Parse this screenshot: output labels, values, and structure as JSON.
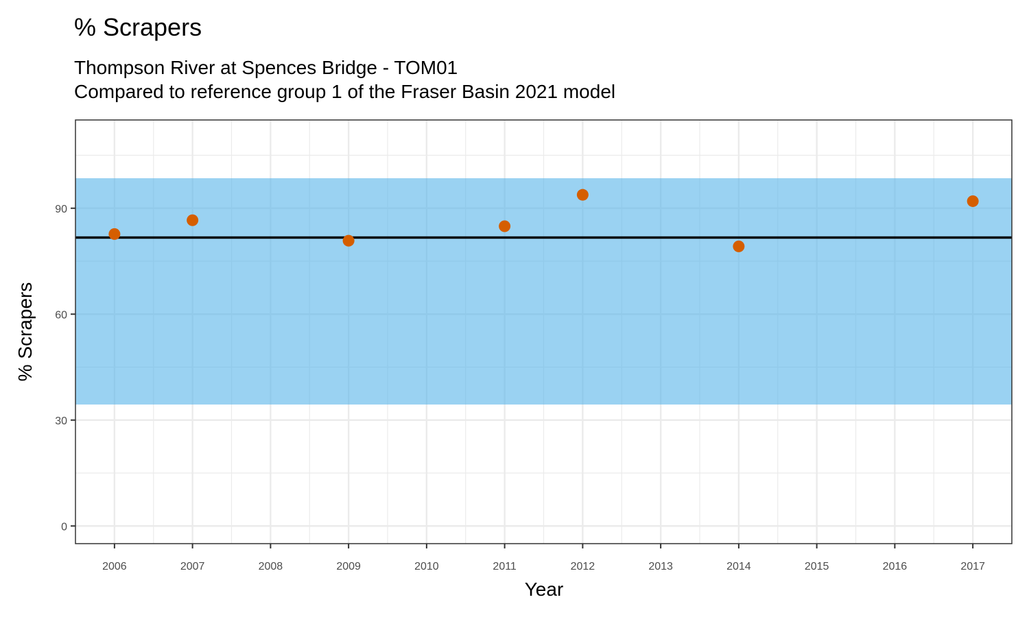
{
  "chart_data": {
    "type": "scatter",
    "title": "% Scrapers",
    "subtitle_lines": [
      "Thompson River at Spences Bridge - TOM01",
      "Compared to reference group 1 of the Fraser Basin 2021 model"
    ],
    "xlabel": "Year",
    "ylabel": "% Scrapers",
    "x_ticks": [
      "2006",
      "2007",
      "2008",
      "2009",
      "2010",
      "2011",
      "2012",
      "2013",
      "2014",
      "2015",
      "2016",
      "2017"
    ],
    "y_ticks": [
      "0",
      "30",
      "60",
      "90"
    ],
    "xlim": [
      2005.5,
      2017.5
    ],
    "ylim": [
      -5,
      115
    ],
    "grid": true,
    "series": [
      {
        "x": [
          2006,
          2007,
          2009,
          2011,
          2012,
          2014,
          2017
        ],
        "y": [
          82.7,
          86.6,
          80.8,
          84.9,
          93.8,
          79.2,
          92.0
        ]
      }
    ],
    "reference_line": 81.7,
    "reference_band": [
      34.4,
      98.5
    ],
    "colors": {
      "point": "#D55E00",
      "band": "#56B4E9",
      "line": "#000000",
      "grid": "#EBEBEB",
      "panel_border": "#333333"
    }
  }
}
